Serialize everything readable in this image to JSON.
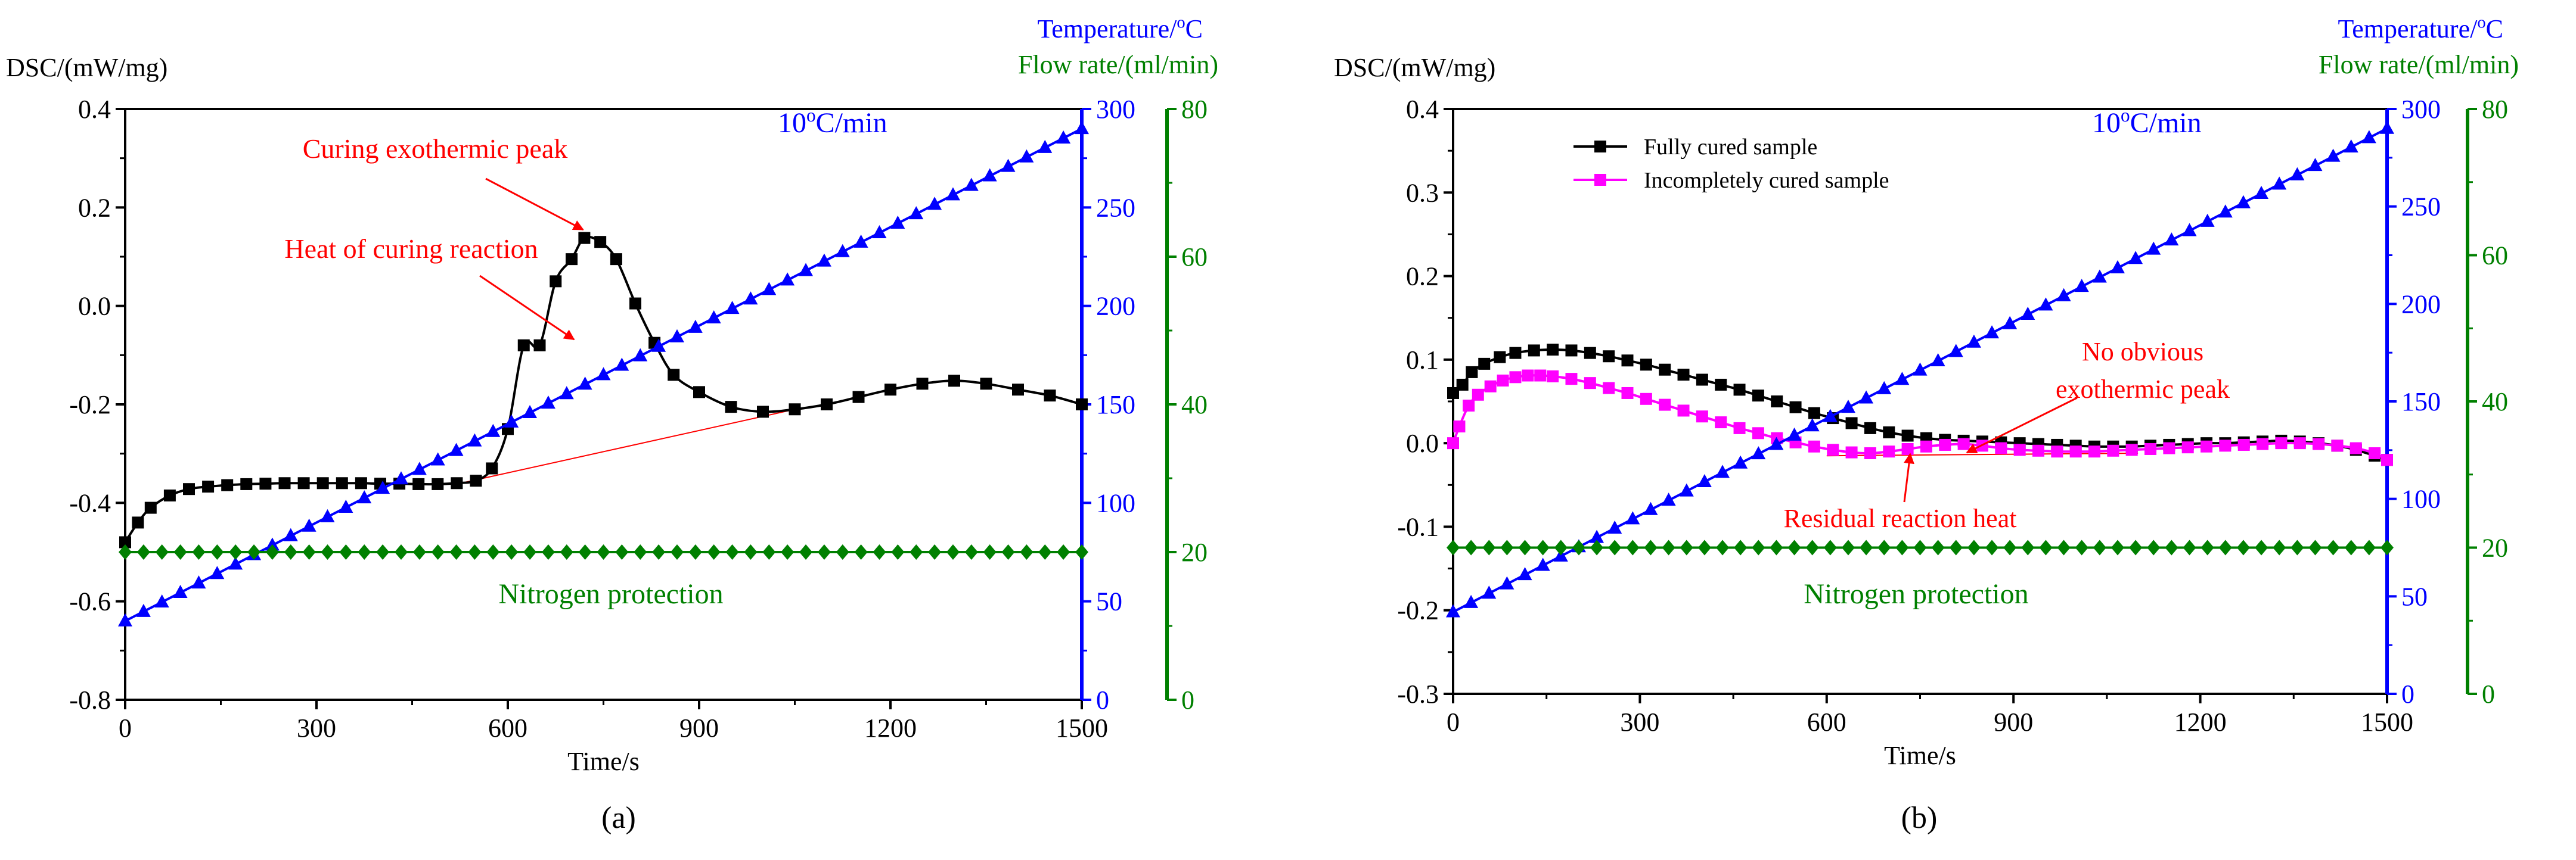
{
  "colors": {
    "dsc": "#000000",
    "temperature": "#0000ff",
    "flow": "#008000",
    "annotation": "#ff0000",
    "incomplete": "#ff00ff"
  },
  "chart_data": [
    {
      "type": "line",
      "panel_label": "(a)",
      "xlabel": "Time/s",
      "xlim": [
        0,
        1500
      ],
      "xticks": [
        0,
        300,
        600,
        900,
        1200,
        1500
      ],
      "axes": {
        "dsc": {
          "label": "DSC/(mW/mg)",
          "lim": [
            -0.8,
            0.4
          ],
          "ticks": [
            "-0.8",
            "-0.6",
            "-0.4",
            "-0.2",
            "0.0",
            "0.2",
            "0.4"
          ]
        },
        "temperature": {
          "label_base": "Temperature/",
          "label_sup": "o",
          "label_tail": "C",
          "lim": [
            0,
            300
          ],
          "ticks": [
            0,
            50,
            100,
            150,
            200,
            250,
            300
          ]
        },
        "flow": {
          "label": "Flow rate/(ml/min)",
          "lim": [
            0,
            80
          ],
          "ticks": [
            0,
            20,
            40,
            60,
            80
          ]
        }
      },
      "series": [
        {
          "name": "DSC",
          "axis": "dsc",
          "marker": "square",
          "x": [
            0,
            20,
            40,
            70,
            100,
            130,
            160,
            190,
            220,
            250,
            280,
            310,
            340,
            370,
            400,
            430,
            460,
            490,
            520,
            550,
            575,
            600,
            625,
            650,
            675,
            700,
            720,
            745,
            770,
            800,
            830,
            860,
            900,
            950,
            1000,
            1050,
            1100,
            1150,
            1200,
            1250,
            1300,
            1350,
            1400,
            1450,
            1500
          ],
          "y": [
            -0.48,
            -0.44,
            -0.41,
            -0.385,
            -0.372,
            -0.367,
            -0.364,
            -0.362,
            -0.361,
            -0.36,
            -0.36,
            -0.36,
            -0.36,
            -0.36,
            -0.361,
            -0.361,
            -0.362,
            -0.362,
            -0.36,
            -0.355,
            -0.33,
            -0.25,
            -0.08,
            -0.08,
            0.05,
            0.095,
            0.138,
            0.13,
            0.095,
            0.005,
            -0.075,
            -0.14,
            -0.175,
            -0.205,
            -0.215,
            -0.21,
            -0.2,
            -0.185,
            -0.17,
            -0.158,
            -0.152,
            -0.158,
            -0.17,
            -0.182,
            -0.2
          ]
        },
        {
          "name": "Temperature",
          "axis": "temperature",
          "marker": "triangle",
          "x": [
            0,
            1500
          ],
          "y": [
            40,
            290
          ]
        },
        {
          "name": "Flow rate",
          "axis": "flow",
          "marker": "diamond",
          "x": [
            0,
            1500
          ],
          "y": [
            20,
            20
          ]
        }
      ],
      "baseline": {
        "x": [
          520,
          1050
        ],
        "y": [
          -0.362,
          -0.21
        ]
      },
      "annotations": {
        "peak": "Curing exothermic peak",
        "heat": "Heat of curing reaction",
        "rate_base": "10",
        "rate_sup": "o",
        "rate_tail": "C/min",
        "gas": "Nitrogen protection"
      }
    },
    {
      "type": "line",
      "panel_label": "(b)",
      "xlabel": "Time/s",
      "xlim": [
        0,
        1500
      ],
      "xticks": [
        0,
        300,
        600,
        900,
        1200,
        1500
      ],
      "axes": {
        "dsc": {
          "label": "DSC/(mW/mg)",
          "lim": [
            -0.3,
            0.4
          ],
          "ticks": [
            "-0.3",
            "-0.2",
            "-0.1",
            "0.0",
            "0.1",
            "0.2",
            "0.3",
            "0.4"
          ]
        },
        "temperature": {
          "label_base": "Temperature/",
          "label_sup": "o",
          "label_tail": "C",
          "lim": [
            0,
            300
          ],
          "ticks": [
            0,
            50,
            100,
            150,
            200,
            250,
            300
          ]
        },
        "flow": {
          "label": "Flow rate/(ml/min)",
          "lim": [
            0,
            80
          ],
          "ticks": [
            0,
            20,
            40,
            60,
            80
          ]
        }
      },
      "series": [
        {
          "name": "Fully cured sample",
          "axis": "dsc",
          "marker": "square",
          "x": [
            0,
            15,
            30,
            50,
            75,
            100,
            130,
            160,
            190,
            220,
            250,
            280,
            310,
            340,
            370,
            400,
            430,
            460,
            490,
            520,
            550,
            580,
            610,
            640,
            670,
            700,
            730,
            760,
            790,
            820,
            850,
            880,
            910,
            940,
            970,
            1000,
            1030,
            1060,
            1090,
            1120,
            1150,
            1180,
            1210,
            1240,
            1270,
            1300,
            1330,
            1360,
            1390,
            1420,
            1450,
            1480,
            1500
          ],
          "y": [
            0.06,
            0.07,
            0.085,
            0.095,
            0.103,
            0.108,
            0.111,
            0.112,
            0.111,
            0.108,
            0.104,
            0.099,
            0.094,
            0.088,
            0.082,
            0.076,
            0.07,
            0.064,
            0.057,
            0.05,
            0.043,
            0.036,
            0.03,
            0.024,
            0.018,
            0.013,
            0.009,
            0.006,
            0.004,
            0.003,
            0.002,
            0.001,
            0.0,
            -0.001,
            -0.002,
            -0.003,
            -0.004,
            -0.004,
            -0.004,
            -0.003,
            -0.002,
            -0.001,
            0.0,
            0.0,
            0.001,
            0.002,
            0.003,
            0.002,
            0.0,
            -0.003,
            -0.008,
            -0.015,
            -0.02
          ]
        },
        {
          "name": "Incompletely cured sample",
          "axis": "dsc",
          "marker": "square",
          "x": [
            0,
            10,
            25,
            40,
            60,
            80,
            100,
            120,
            140,
            160,
            190,
            220,
            250,
            280,
            310,
            340,
            370,
            400,
            430,
            460,
            490,
            520,
            550,
            580,
            610,
            640,
            670,
            700,
            730,
            760,
            790,
            820,
            850,
            880,
            910,
            940,
            970,
            1000,
            1030,
            1060,
            1090,
            1120,
            1150,
            1180,
            1210,
            1240,
            1270,
            1300,
            1330,
            1360,
            1390,
            1420,
            1450,
            1480,
            1500
          ],
          "y": [
            0.0,
            0.02,
            0.045,
            0.058,
            0.068,
            0.075,
            0.079,
            0.081,
            0.081,
            0.08,
            0.077,
            0.072,
            0.066,
            0.06,
            0.053,
            0.046,
            0.039,
            0.032,
            0.025,
            0.018,
            0.012,
            0.006,
            0.001,
            -0.004,
            -0.008,
            -0.011,
            -0.012,
            -0.01,
            -0.007,
            -0.004,
            -0.002,
            -0.001,
            -0.003,
            -0.006,
            -0.008,
            -0.009,
            -0.01,
            -0.01,
            -0.01,
            -0.009,
            -0.008,
            -0.007,
            -0.006,
            -0.005,
            -0.004,
            -0.003,
            -0.002,
            -0.001,
            0.0,
            0.0,
            -0.001,
            -0.003,
            -0.006,
            -0.012,
            -0.02
          ]
        },
        {
          "name": "Temperature",
          "axis": "temperature",
          "marker": "triangle",
          "x": [
            0,
            1500
          ],
          "y": [
            42,
            290
          ]
        },
        {
          "name": "Flow rate",
          "axis": "flow",
          "marker": "diamond",
          "x": [
            0,
            1500
          ],
          "y": [
            20,
            20
          ]
        }
      ],
      "baseline": {
        "x": [
          600,
          1100
        ],
        "y": [
          -0.015,
          -0.012
        ]
      },
      "annotations": {
        "no_peak_line1": "No obvious",
        "no_peak_line2": "exothermic peak",
        "residual": "Residual reaction heat",
        "rate_base": "10",
        "rate_sup": "o",
        "rate_tail": "C/min",
        "gas": "Nitrogen protection"
      },
      "legend": [
        "Fully cured sample",
        "Incompletely cured sample"
      ]
    }
  ]
}
